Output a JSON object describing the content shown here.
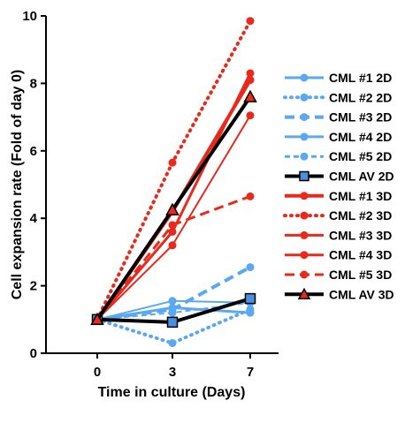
{
  "chart_data": {
    "type": "line",
    "xlabel": "Time in culture (Days)",
    "ylabel": "Cell expansion rate (Fold of day 0)",
    "categories": [
      "0",
      "3",
      "7"
    ],
    "ylim": [
      0,
      10
    ],
    "yticks": [
      "0",
      "2",
      "4",
      "6",
      "8",
      "10"
    ],
    "grid": false,
    "legend_position": "right",
    "series": [
      {
        "name": "CML #1 2D",
        "values": [
          1.0,
          1.35,
          1.2
        ],
        "color": "#5aa9f0",
        "dash": "solid",
        "marker": "circle",
        "width": 3
      },
      {
        "name": "CML #2 2D",
        "values": [
          1.0,
          0.3,
          1.3
        ],
        "color": "#5aa9f0",
        "dash": "dotted",
        "marker": "circle",
        "width": 4
      },
      {
        "name": "CML #3 2D",
        "values": [
          1.0,
          1.3,
          2.55
        ],
        "color": "#5aa9f0",
        "dash": "dashed",
        "marker": "circle",
        "width": 4
      },
      {
        "name": "CML #4 2D",
        "values": [
          1.0,
          1.55,
          1.5
        ],
        "color": "#5aa9f0",
        "dash": "solid",
        "marker": "circle",
        "width": 2
      },
      {
        "name": "CML #5 2D",
        "values": [
          1.0,
          1.2,
          1.5
        ],
        "color": "#5aa9f0",
        "dash": "thin-dashed",
        "marker": "circle",
        "width": 2
      },
      {
        "name": "CML AV 2D",
        "values": [
          1.0,
          0.92,
          1.62
        ],
        "color": "#000000",
        "dash": "solid",
        "marker": "square",
        "marker_color": "#4a8fe0",
        "width": 4
      },
      {
        "name": "CML #1 3D",
        "values": [
          1.0,
          4.2,
          8.1
        ],
        "color": "#e8291c",
        "dash": "solid",
        "marker": "circle",
        "width": 4
      },
      {
        "name": "CML #2 3D",
        "values": [
          1.0,
          5.65,
          9.85
        ],
        "color": "#e8291c",
        "dash": "dotted",
        "marker": "circle",
        "width": 4
      },
      {
        "name": "CML #3 3D",
        "values": [
          1.0,
          3.6,
          8.3
        ],
        "color": "#e8291c",
        "dash": "solid",
        "marker": "circle",
        "width": 3
      },
      {
        "name": "CML #4 3D",
        "values": [
          1.0,
          3.2,
          7.05
        ],
        "color": "#e8291c",
        "dash": "solid",
        "marker": "circle",
        "width": 2
      },
      {
        "name": "CML #5 3D",
        "values": [
          1.0,
          3.8,
          4.65
        ],
        "color": "#e8291c",
        "dash": "dashed",
        "marker": "circle",
        "width": 3
      },
      {
        "name": "CML AV 3D",
        "values": [
          1.0,
          4.25,
          7.6
        ],
        "color": "#000000",
        "dash": "solid",
        "marker": "triangle",
        "marker_color": "#e8291c",
        "width": 4
      }
    ]
  }
}
